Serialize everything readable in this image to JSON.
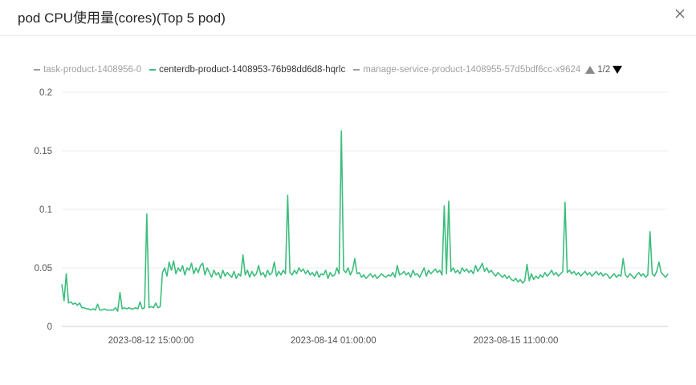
{
  "dialog": {
    "title": "pod CPU使用量(cores)(Top 5 pod)",
    "close_icon": "close-icon"
  },
  "legend": {
    "items": [
      {
        "label": "task-product-1408956-0",
        "active": false
      },
      {
        "label": "centerdb-product-1408953-76b98dd6d8-hqrlc",
        "active": true
      },
      {
        "label": "manage-service-product-1408955-57d5bdf6cc-x9624",
        "active": false
      }
    ],
    "page": "1/2"
  },
  "colors": {
    "series": "#3dbd7d",
    "inactive": "#a0a0a0",
    "grid": "#ececec",
    "axis": "#cccccc"
  },
  "chart_data": {
    "type": "line",
    "ylim": [
      0,
      0.2
    ],
    "yticks": [
      "0.2",
      "0.15",
      "0.1",
      "0.05",
      "0"
    ],
    "xticks": [
      "2023-08-12 15:00:00",
      "2023-08-14 01:00:00",
      "2023-08-15 11:00:00"
    ],
    "series": [
      {
        "name": "centerdb-product-1408953-76b98dd6d8-hqrlc",
        "values": [
          0.036,
          0.022,
          0.045,
          0.02,
          0.021,
          0.019,
          0.02,
          0.018,
          0.02,
          0.016,
          0.016,
          0.015,
          0.015,
          0.014,
          0.015,
          0.014,
          0.019,
          0.014,
          0.014,
          0.015,
          0.014,
          0.014,
          0.014,
          0.014,
          0.016,
          0.013,
          0.029,
          0.015,
          0.016,
          0.015,
          0.016,
          0.015,
          0.015,
          0.016,
          0.015,
          0.021,
          0.015,
          0.016,
          0.096,
          0.016,
          0.017,
          0.016,
          0.02,
          0.016,
          0.017,
          0.046,
          0.05,
          0.043,
          0.055,
          0.048,
          0.056,
          0.045,
          0.05,
          0.047,
          0.052,
          0.044,
          0.05,
          0.048,
          0.054,
          0.045,
          0.05,
          0.046,
          0.052,
          0.054,
          0.044,
          0.05,
          0.046,
          0.042,
          0.048,
          0.044,
          0.046,
          0.041,
          0.048,
          0.043,
          0.046,
          0.044,
          0.042,
          0.047,
          0.041,
          0.045,
          0.043,
          0.061,
          0.044,
          0.048,
          0.042,
          0.047,
          0.043,
          0.045,
          0.052,
          0.044,
          0.046,
          0.042,
          0.048,
          0.044,
          0.046,
          0.055,
          0.043,
          0.047,
          0.044,
          0.048,
          0.045,
          0.112,
          0.046,
          0.044,
          0.048,
          0.045,
          0.05,
          0.047,
          0.049,
          0.045,
          0.048,
          0.044,
          0.046,
          0.043,
          0.047,
          0.042,
          0.045,
          0.044,
          0.048,
          0.041,
          0.046,
          0.043,
          0.044,
          0.05,
          0.045,
          0.167,
          0.048,
          0.046,
          0.05,
          0.044,
          0.048,
          0.058,
          0.045,
          0.046,
          0.042,
          0.044,
          0.041,
          0.043,
          0.045,
          0.042,
          0.044,
          0.041,
          0.043,
          0.045,
          0.043,
          0.042,
          0.044,
          0.043,
          0.046,
          0.042,
          0.052,
          0.044,
          0.045,
          0.047,
          0.044,
          0.046,
          0.042,
          0.048,
          0.044,
          0.045,
          0.042,
          0.046,
          0.05,
          0.043,
          0.048,
          0.045,
          0.047,
          0.049,
          0.046,
          0.048,
          0.044,
          0.103,
          0.045,
          0.107,
          0.047,
          0.05,
          0.046,
          0.048,
          0.045,
          0.05,
          0.047,
          0.049,
          0.046,
          0.048,
          0.045,
          0.052,
          0.047,
          0.05,
          0.054,
          0.047,
          0.05,
          0.046,
          0.048,
          0.045,
          0.043,
          0.046,
          0.044,
          0.042,
          0.044,
          0.041,
          0.043,
          0.04,
          0.039,
          0.041,
          0.038,
          0.04,
          0.037,
          0.039,
          0.053,
          0.039,
          0.045,
          0.04,
          0.043,
          0.041,
          0.044,
          0.042,
          0.046,
          0.043,
          0.045,
          0.048,
          0.044,
          0.046,
          0.043,
          0.045,
          0.047,
          0.106,
          0.046,
          0.048,
          0.045,
          0.047,
          0.044,
          0.046,
          0.043,
          0.045,
          0.047,
          0.044,
          0.046,
          0.043,
          0.045,
          0.047,
          0.044,
          0.046,
          0.043,
          0.045,
          0.044,
          0.041,
          0.043,
          0.045,
          0.042,
          0.044,
          0.043,
          0.058,
          0.044,
          0.042,
          0.045,
          0.043,
          0.041,
          0.044,
          0.046,
          0.043,
          0.045,
          0.042,
          0.044,
          0.081,
          0.045,
          0.043,
          0.047,
          0.055,
          0.046,
          0.044,
          0.042,
          0.045
        ]
      }
    ]
  }
}
